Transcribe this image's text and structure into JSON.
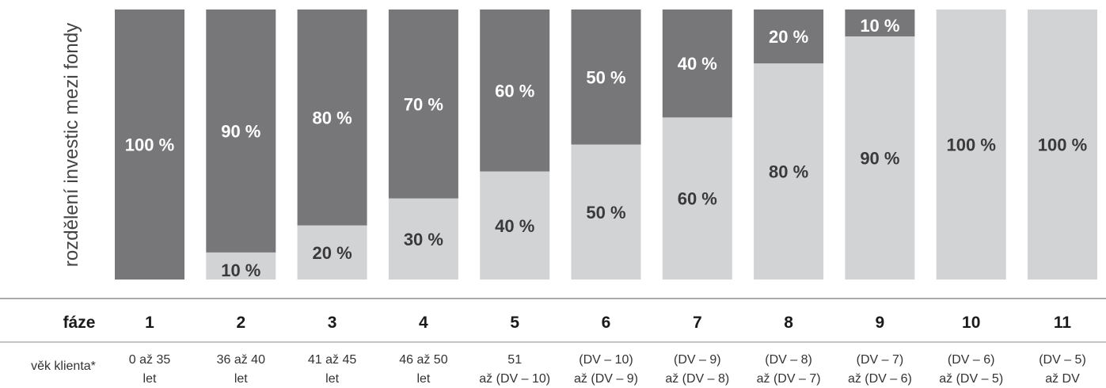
{
  "chart_data": {
    "type": "bar",
    "stacked": true,
    "ylabel": "rozdělení investic mezi fondy",
    "ylim": [
      0,
      100
    ],
    "grid": false,
    "categories": [
      "1",
      "2",
      "3",
      "4",
      "5",
      "6",
      "7",
      "8",
      "9",
      "10",
      "11"
    ],
    "series": [
      {
        "color": "#77777a",
        "text_color": "#ffffff",
        "values": [
          100,
          90,
          80,
          70,
          60,
          50,
          40,
          20,
          10,
          0,
          0
        ]
      },
      {
        "color": "#d2d3d5",
        "text_color": "#3a3a3c",
        "values": [
          0,
          10,
          20,
          30,
          40,
          50,
          60,
          80,
          90,
          100,
          100
        ]
      }
    ],
    "segment_labels": {
      "top": [
        "100 %",
        "90 %",
        "80 %",
        "70 %",
        "60 %",
        "50 %",
        "40 %",
        "20 %",
        "10 %",
        "",
        ""
      ],
      "bottom": [
        "",
        "10 %",
        "20 %",
        "30 %",
        "40 %",
        "50 %",
        "60 %",
        "80 %",
        "90 %",
        "100 %",
        "100 %"
      ]
    }
  },
  "table": {
    "row_phase_label": "fáze",
    "phases": [
      "1",
      "2",
      "3",
      "4",
      "5",
      "6",
      "7",
      "8",
      "9",
      "10",
      "11"
    ],
    "row_age_label": "věk klienta*",
    "ages": [
      [
        "0 až 35",
        "let"
      ],
      [
        "36 až 40",
        "let"
      ],
      [
        "41 až 45",
        "let"
      ],
      [
        "46 až 50",
        "let"
      ],
      [
        "51",
        "až (DV – 10)"
      ],
      [
        "(DV – 10)",
        "až (DV – 9)"
      ],
      [
        "(DV – 9)",
        "až (DV – 8)"
      ],
      [
        "(DV – 8)",
        "až (DV – 7)"
      ],
      [
        "(DV – 7)",
        "až (DV – 6)"
      ],
      [
        "(DV – 6)",
        "až (DV – 5)"
      ],
      [
        "(DV – 5)",
        "až DV"
      ]
    ]
  }
}
